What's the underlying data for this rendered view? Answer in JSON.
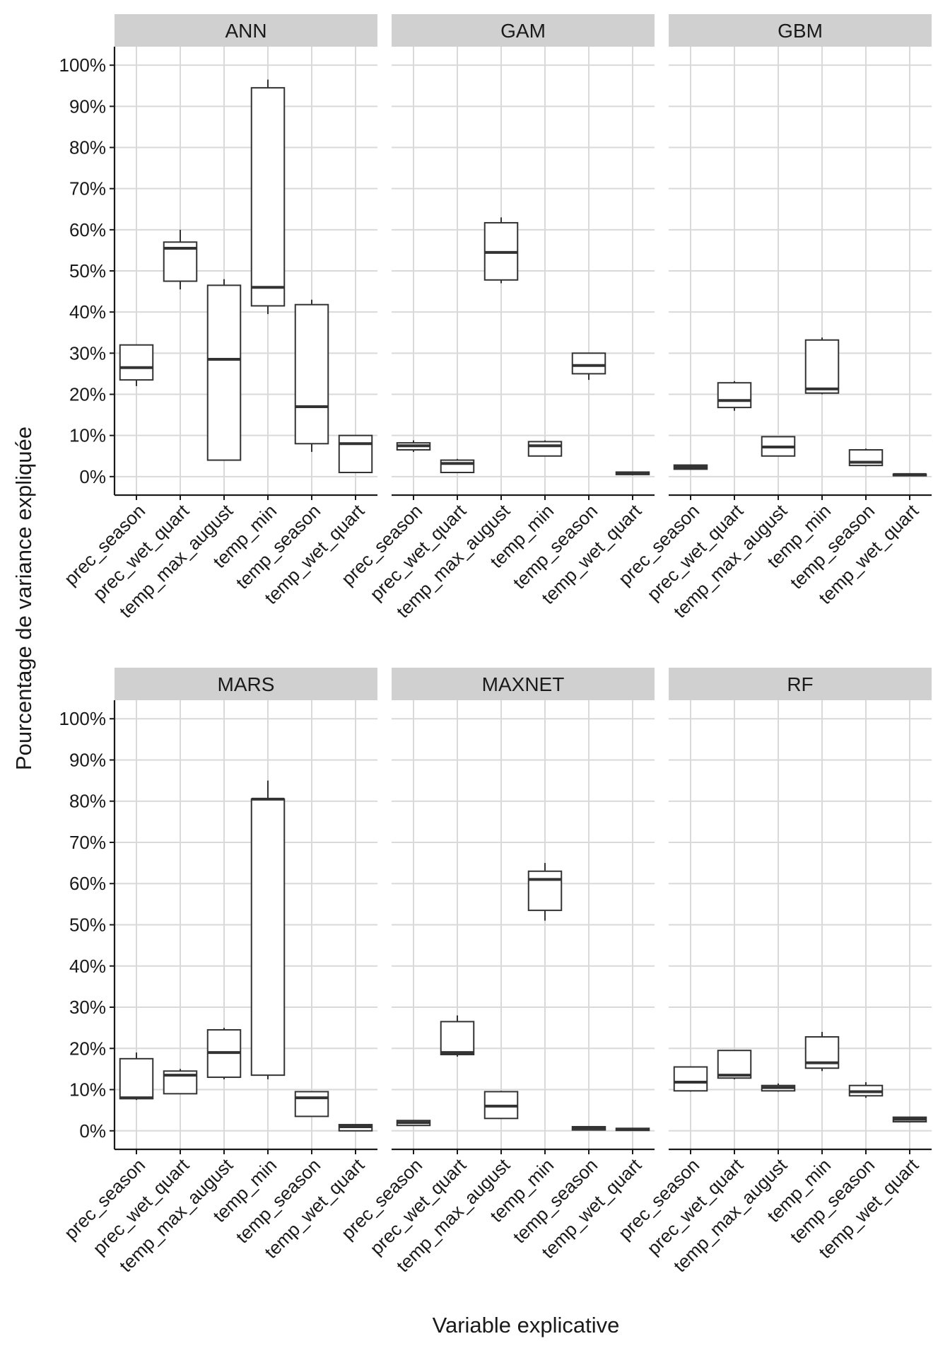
{
  "chart_data": {
    "type": "boxplot",
    "xlabel": "Variable explicative",
    "ylabel": "Pourcentage de variance expliquée",
    "ylim": [
      -0.045,
      1.045
    ],
    "y_ticks": [
      0,
      0.1,
      0.2,
      0.3,
      0.4,
      0.5,
      0.6,
      0.7,
      0.8,
      0.9,
      1.0
    ],
    "y_tick_labels": [
      "0%",
      "10%",
      "20%",
      "30%",
      "40%",
      "50%",
      "60%",
      "70%",
      "80%",
      "90%",
      "100%"
    ],
    "categories": [
      "prec_season",
      "prec_wet_quart",
      "temp_max_august",
      "temp_min",
      "temp_season",
      "temp_wet_quart"
    ],
    "panels": [
      {
        "name": "ANN",
        "boxes": [
          {
            "min": 0.22,
            "q1": 0.235,
            "median": 0.265,
            "q3": 0.32,
            "max": 0.32
          },
          {
            "min": 0.455,
            "q1": 0.475,
            "median": 0.555,
            "q3": 0.57,
            "max": 0.6
          },
          {
            "min": 0.04,
            "q1": 0.04,
            "median": 0.285,
            "q3": 0.465,
            "max": 0.48
          },
          {
            "min": 0.395,
            "q1": 0.415,
            "median": 0.46,
            "q3": 0.945,
            "max": 0.965
          },
          {
            "min": 0.06,
            "q1": 0.08,
            "median": 0.17,
            "q3": 0.418,
            "max": 0.43
          },
          {
            "min": 0.01,
            "q1": 0.01,
            "median": 0.08,
            "q3": 0.1,
            "max": 0.1
          }
        ]
      },
      {
        "name": "GAM",
        "boxes": [
          {
            "min": 0.06,
            "q1": 0.065,
            "median": 0.075,
            "q3": 0.082,
            "max": 0.088
          },
          {
            "min": 0.01,
            "q1": 0.01,
            "median": 0.032,
            "q3": 0.04,
            "max": 0.043
          },
          {
            "min": 0.47,
            "q1": 0.478,
            "median": 0.545,
            "q3": 0.617,
            "max": 0.63
          },
          {
            "min": 0.05,
            "q1": 0.05,
            "median": 0.075,
            "q3": 0.085,
            "max": 0.088
          },
          {
            "min": 0.235,
            "q1": 0.25,
            "median": 0.27,
            "q3": 0.3,
            "max": 0.3
          },
          {
            "min": 0.003,
            "q1": 0.005,
            "median": 0.008,
            "q3": 0.011,
            "max": 0.012
          }
        ]
      },
      {
        "name": "GBM",
        "boxes": [
          {
            "min": 0.018,
            "q1": 0.018,
            "median": 0.023,
            "q3": 0.028,
            "max": 0.028
          },
          {
            "min": 0.16,
            "q1": 0.168,
            "median": 0.185,
            "q3": 0.228,
            "max": 0.232
          },
          {
            "min": 0.05,
            "q1": 0.05,
            "median": 0.072,
            "q3": 0.097,
            "max": 0.097
          },
          {
            "min": 0.2,
            "q1": 0.203,
            "median": 0.213,
            "q3": 0.332,
            "max": 0.338
          },
          {
            "min": 0.025,
            "q1": 0.027,
            "median": 0.035,
            "q3": 0.065,
            "max": 0.068
          },
          {
            "min": 0.002,
            "q1": 0.002,
            "median": 0.005,
            "q3": 0.006,
            "max": 0.007
          }
        ]
      },
      {
        "name": "MARS",
        "boxes": [
          {
            "min": 0.075,
            "q1": 0.078,
            "median": 0.08,
            "q3": 0.175,
            "max": 0.19
          },
          {
            "min": 0.09,
            "q1": 0.09,
            "median": 0.135,
            "q3": 0.145,
            "max": 0.15
          },
          {
            "min": 0.125,
            "q1": 0.13,
            "median": 0.19,
            "q3": 0.245,
            "max": 0.25
          },
          {
            "min": 0.125,
            "q1": 0.135,
            "median": 0.805,
            "q3": 0.805,
            "max": 0.85
          },
          {
            "min": 0.035,
            "q1": 0.035,
            "median": 0.08,
            "q3": 0.095,
            "max": 0.095
          },
          {
            "min": 0.0,
            "q1": 0.0,
            "median": 0.01,
            "q3": 0.015,
            "max": 0.015
          }
        ]
      },
      {
        "name": "MAXNET",
        "boxes": [
          {
            "min": 0.013,
            "q1": 0.013,
            "median": 0.02,
            "q3": 0.025,
            "max": 0.025
          },
          {
            "min": 0.18,
            "q1": 0.185,
            "median": 0.19,
            "q3": 0.265,
            "max": 0.28
          },
          {
            "min": 0.03,
            "q1": 0.03,
            "median": 0.06,
            "q3": 0.095,
            "max": 0.097
          },
          {
            "min": 0.51,
            "q1": 0.535,
            "median": 0.61,
            "q3": 0.63,
            "max": 0.65
          },
          {
            "min": 0.002,
            "q1": 0.002,
            "median": 0.007,
            "q3": 0.01,
            "max": 0.01
          },
          {
            "min": 0.001,
            "q1": 0.001,
            "median": 0.004,
            "q3": 0.006,
            "max": 0.006
          }
        ]
      },
      {
        "name": "RF",
        "boxes": [
          {
            "min": 0.095,
            "q1": 0.097,
            "median": 0.118,
            "q3": 0.155,
            "max": 0.155
          },
          {
            "min": 0.125,
            "q1": 0.128,
            "median": 0.135,
            "q3": 0.195,
            "max": 0.195
          },
          {
            "min": 0.095,
            "q1": 0.097,
            "median": 0.105,
            "q3": 0.11,
            "max": 0.115
          },
          {
            "min": 0.145,
            "q1": 0.152,
            "median": 0.165,
            "q3": 0.228,
            "max": 0.24
          },
          {
            "min": 0.08,
            "q1": 0.085,
            "median": 0.095,
            "q3": 0.11,
            "max": 0.118
          },
          {
            "min": 0.02,
            "q1": 0.022,
            "median": 0.028,
            "q3": 0.033,
            "max": 0.033
          }
        ]
      }
    ]
  }
}
